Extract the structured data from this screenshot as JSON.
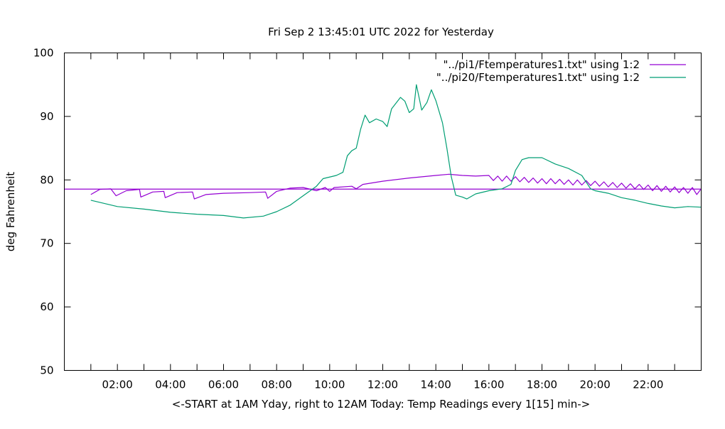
{
  "chart_data": {
    "type": "line",
    "title": "Fri Sep  2 13:45:01 UTC 2022 for Yesterday",
    "xlabel": "<-START at 1AM Yday, right to 12AM Today:  Temp Readings every 1[15] min->",
    "ylabel": "deg Fahrenheit",
    "xlim": [
      "00:00",
      "24:00"
    ],
    "ylim": [
      50,
      100
    ],
    "yticks": [
      50,
      60,
      70,
      80,
      90,
      100
    ],
    "xticks": [
      "02:00",
      "04:00",
      "06:00",
      "08:00",
      "10:00",
      "12:00",
      "14:00",
      "16:00",
      "18:00",
      "20:00",
      "22:00"
    ],
    "grid": false,
    "legend_placement": "top-right",
    "reference_line": {
      "y": 78.55,
      "color": "#9400d3"
    },
    "series": [
      {
        "name": "\"../pi1/Ftemperatures1.txt\" using 1:2",
        "color": "#9400d3",
        "points": [
          [
            "01:00",
            77.7
          ],
          [
            "01:20",
            78.5
          ],
          [
            "01:45",
            78.6
          ],
          [
            "01:57",
            77.5
          ],
          [
            "02:20",
            78.3
          ],
          [
            "02:50",
            78.5
          ],
          [
            "02:53",
            77.3
          ],
          [
            "03:20",
            78.1
          ],
          [
            "03:45",
            78.2
          ],
          [
            "03:48",
            77.2
          ],
          [
            "04:15",
            78.0
          ],
          [
            "04:50",
            78.1
          ],
          [
            "04:54",
            77.0
          ],
          [
            "05:20",
            77.7
          ],
          [
            "06:00",
            77.9
          ],
          [
            "07:00",
            78.0
          ],
          [
            "07:35",
            78.1
          ],
          [
            "07:40",
            77.1
          ],
          [
            "08:00",
            78.2
          ],
          [
            "08:30",
            78.7
          ],
          [
            "09:00",
            78.8
          ],
          [
            "09:30",
            78.3
          ],
          [
            "09:50",
            78.8
          ],
          [
            "10:00",
            78.2
          ],
          [
            "10:10",
            78.8
          ],
          [
            "10:50",
            79.0
          ],
          [
            "11:00",
            78.6
          ],
          [
            "11:15",
            79.3
          ],
          [
            "12:00",
            79.8
          ],
          [
            "13:00",
            80.3
          ],
          [
            "14:00",
            80.7
          ],
          [
            "14:30",
            80.9
          ],
          [
            "15:00",
            80.7
          ],
          [
            "15:30",
            80.6
          ],
          [
            "16:00",
            80.7
          ],
          [
            "16:10",
            79.9
          ],
          [
            "16:20",
            80.6
          ],
          [
            "16:30",
            79.8
          ],
          [
            "16:40",
            80.6
          ],
          [
            "16:50",
            79.8
          ],
          [
            "17:00",
            80.5
          ],
          [
            "17:10",
            79.7
          ],
          [
            "17:20",
            80.4
          ],
          [
            "17:30",
            79.6
          ],
          [
            "17:40",
            80.3
          ],
          [
            "17:50",
            79.5
          ],
          [
            "18:00",
            80.2
          ],
          [
            "18:10",
            79.4
          ],
          [
            "18:20",
            80.2
          ],
          [
            "18:30",
            79.4
          ],
          [
            "18:40",
            80.1
          ],
          [
            "18:50",
            79.3
          ],
          [
            "19:00",
            80.0
          ],
          [
            "19:10",
            79.2
          ],
          [
            "19:20",
            80.0
          ],
          [
            "19:30",
            79.2
          ],
          [
            "19:40",
            79.9
          ],
          [
            "19:50",
            79.1
          ],
          [
            "20:00",
            79.8
          ],
          [
            "20:10",
            79.0
          ],
          [
            "20:20",
            79.7
          ],
          [
            "20:30",
            78.9
          ],
          [
            "20:40",
            79.6
          ],
          [
            "20:50",
            78.8
          ],
          [
            "21:00",
            79.5
          ],
          [
            "21:10",
            78.7
          ],
          [
            "21:20",
            79.4
          ],
          [
            "21:30",
            78.6
          ],
          [
            "21:40",
            79.3
          ],
          [
            "21:50",
            78.5
          ],
          [
            "22:00",
            79.2
          ],
          [
            "22:10",
            78.3
          ],
          [
            "22:20",
            79.1
          ],
          [
            "22:30",
            78.2
          ],
          [
            "22:40",
            79.0
          ],
          [
            "22:50",
            78.1
          ],
          [
            "23:00",
            78.9
          ],
          [
            "23:10",
            78.0
          ],
          [
            "23:20",
            78.8
          ],
          [
            "23:30",
            77.9
          ],
          [
            "23:40",
            78.8
          ],
          [
            "23:50",
            77.7
          ],
          [
            "24:00",
            78.6
          ]
        ]
      },
      {
        "name": "\"../pi20/Ftemperatures1.txt\" using 1:2",
        "color": "#009e73",
        "points": [
          [
            "01:00",
            76.8
          ],
          [
            "02:00",
            75.8
          ],
          [
            "03:00",
            75.4
          ],
          [
            "04:00",
            74.9
          ],
          [
            "05:00",
            74.6
          ],
          [
            "06:00",
            74.4
          ],
          [
            "06:45",
            74.0
          ],
          [
            "07:30",
            74.3
          ],
          [
            "08:00",
            75.0
          ],
          [
            "08:30",
            76.0
          ],
          [
            "09:00",
            77.5
          ],
          [
            "09:30",
            79.0
          ],
          [
            "09:45",
            80.2
          ],
          [
            "10:15",
            80.7
          ],
          [
            "10:30",
            81.2
          ],
          [
            "10:40",
            83.8
          ],
          [
            "10:50",
            84.6
          ],
          [
            "11:00",
            85.0
          ],
          [
            "11:10",
            88.0
          ],
          [
            "11:20",
            90.2
          ],
          [
            "11:30",
            89.0
          ],
          [
            "11:45",
            89.6
          ],
          [
            "12:00",
            89.2
          ],
          [
            "12:10",
            88.4
          ],
          [
            "12:20",
            91.2
          ],
          [
            "12:40",
            93.0
          ],
          [
            "12:50",
            92.4
          ],
          [
            "13:00",
            90.6
          ],
          [
            "13:10",
            91.2
          ],
          [
            "13:16",
            95.0
          ],
          [
            "13:28",
            91.0
          ],
          [
            "13:40",
            92.2
          ],
          [
            "13:50",
            94.2
          ],
          [
            "14:00",
            92.5
          ],
          [
            "14:15",
            89.0
          ],
          [
            "14:25",
            85.0
          ],
          [
            "14:35",
            80.5
          ],
          [
            "14:45",
            77.6
          ],
          [
            "15:00",
            77.3
          ],
          [
            "15:10",
            77.0
          ],
          [
            "15:30",
            77.8
          ],
          [
            "16:00",
            78.3
          ],
          [
            "16:30",
            78.6
          ],
          [
            "16:50",
            79.3
          ],
          [
            "17:00",
            81.5
          ],
          [
            "17:15",
            83.2
          ],
          [
            "17:30",
            83.5
          ],
          [
            "18:00",
            83.5
          ],
          [
            "18:30",
            82.5
          ],
          [
            "19:00",
            81.8
          ],
          [
            "19:30",
            80.7
          ],
          [
            "19:50",
            78.6
          ],
          [
            "20:00",
            78.3
          ],
          [
            "20:30",
            77.9
          ],
          [
            "21:00",
            77.2
          ],
          [
            "21:30",
            76.8
          ],
          [
            "22:00",
            76.3
          ],
          [
            "22:30",
            75.9
          ],
          [
            "23:00",
            75.6
          ],
          [
            "23:30",
            75.8
          ],
          [
            "24:00",
            75.7
          ]
        ]
      }
    ]
  }
}
